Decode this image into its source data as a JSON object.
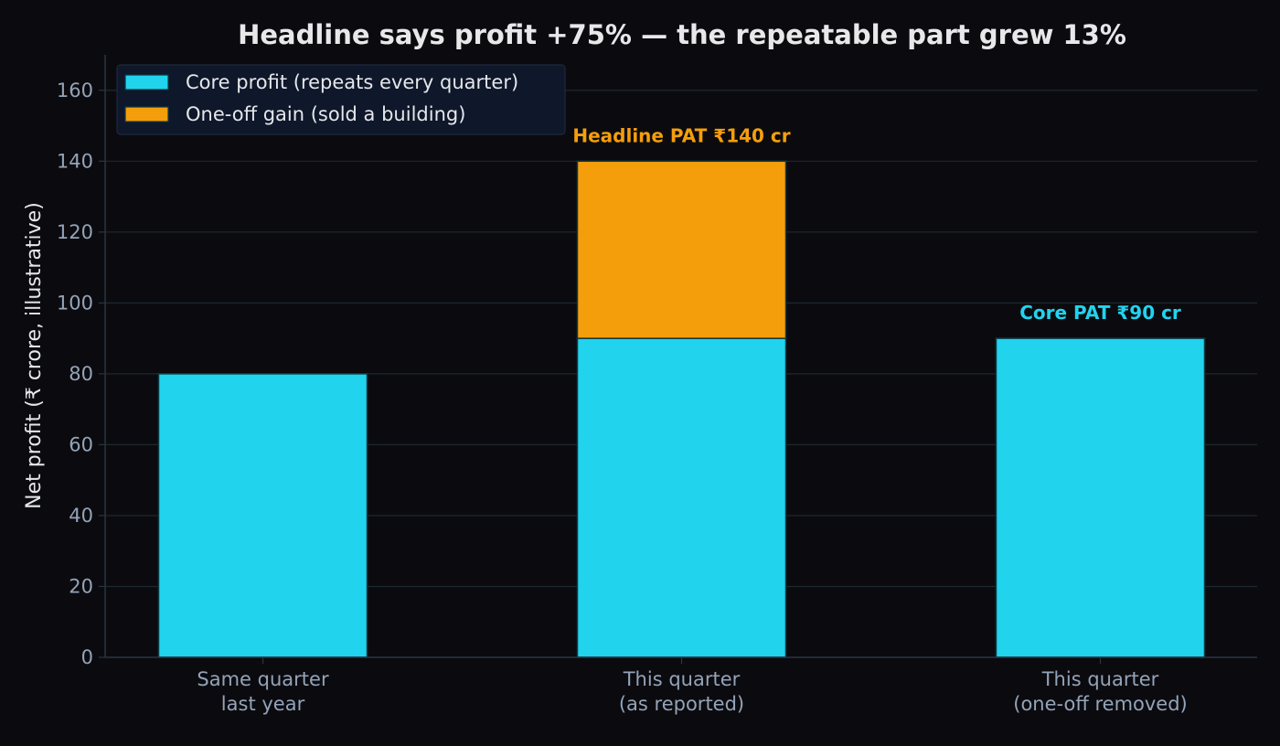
{
  "chart_data": {
    "type": "bar",
    "stacked": true,
    "title": "Headline says profit +75% — the repeatable part grew 13%",
    "ylabel": "Net profit (₹ crore, illustrative)",
    "xlabel": "",
    "ylim": [
      0,
      170
    ],
    "yticks": [
      0,
      20,
      40,
      60,
      80,
      100,
      120,
      140,
      160
    ],
    "grid": true,
    "legend_position": "top-left",
    "categories": [
      [
        "Same quarter",
        "last year"
      ],
      [
        "This quarter",
        "(as reported)"
      ],
      [
        "This quarter",
        "(one-off removed)"
      ]
    ],
    "series": [
      {
        "name": "Core profit (repeats every quarter)",
        "color": "#22d3ee",
        "values": [
          80,
          90,
          90
        ]
      },
      {
        "name": "One-off gain (sold a building)",
        "color": "#f59e0b",
        "values": [
          0,
          50,
          0
        ]
      }
    ],
    "annotations": [
      {
        "category_index": 1,
        "y": 140,
        "text": "Headline PAT ₹140 cr",
        "color": "#f59e0b"
      },
      {
        "category_index": 2,
        "y": 90,
        "text": "Core PAT ₹90 cr",
        "color": "#22d3ee"
      }
    ]
  },
  "colors": {
    "background": "#0b0b0f",
    "title": "#e8e8ea",
    "axis_label": "#e5e7eb",
    "tick_label": "#94a3b8",
    "grid": "#1c2830",
    "axis": "#2a3440",
    "bar_edge": "#0e3a44",
    "legend_bg": "#0f172a",
    "legend_border": "#1e2a3a",
    "legend_text": "#e5e7eb"
  }
}
